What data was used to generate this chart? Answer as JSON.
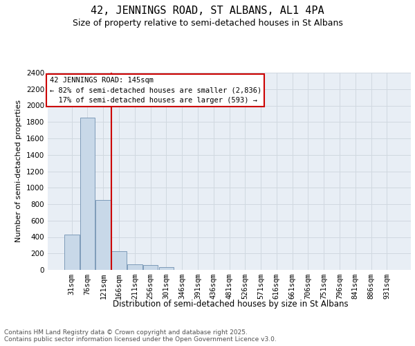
{
  "title1": "42, JENNINGS ROAD, ST ALBANS, AL1 4PA",
  "title2": "Size of property relative to semi-detached houses in St Albans",
  "xlabel": "Distribution of semi-detached houses by size in St Albans",
  "ylabel": "Number of semi-detached properties",
  "categories": [
    "31sqm",
    "76sqm",
    "121sqm",
    "166sqm",
    "211sqm",
    "256sqm",
    "301sqm",
    "346sqm",
    "391sqm",
    "436sqm",
    "481sqm",
    "526sqm",
    "571sqm",
    "616sqm",
    "661sqm",
    "706sqm",
    "751sqm",
    "796sqm",
    "841sqm",
    "886sqm",
    "931sqm"
  ],
  "values": [
    430,
    1850,
    850,
    225,
    70,
    55,
    30,
    0,
    0,
    0,
    0,
    0,
    0,
    0,
    0,
    0,
    0,
    0,
    0,
    0,
    0
  ],
  "bar_color": "#c8d8e8",
  "bar_edge_color": "#7090b0",
  "vline_x": 2.5,
  "vline_color": "#cc0000",
  "ylim": [
    0,
    2400
  ],
  "yticks": [
    0,
    200,
    400,
    600,
    800,
    1000,
    1200,
    1400,
    1600,
    1800,
    2000,
    2200,
    2400
  ],
  "annotation_text": "42 JENNINGS ROAD: 145sqm\n← 82% of semi-detached houses are smaller (2,836)\n  17% of semi-detached houses are larger (593) →",
  "annotation_box_color": "#cc0000",
  "footer": "Contains HM Land Registry data © Crown copyright and database right 2025.\nContains public sector information licensed under the Open Government Licence v3.0.",
  "background_color": "#ffffff",
  "grid_color": "#d0d8e0",
  "title1_fontsize": 11,
  "title2_fontsize": 9,
  "xlabel_fontsize": 8.5,
  "ylabel_fontsize": 8,
  "tick_fontsize": 7.5,
  "annotation_fontsize": 7.5,
  "footer_fontsize": 6.5
}
